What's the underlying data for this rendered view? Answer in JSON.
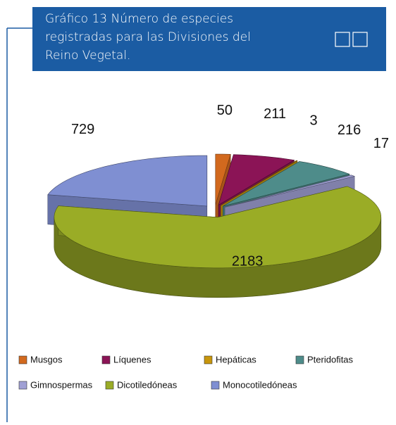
{
  "chart_data": {
    "type": "pie3d",
    "title": [
      "Gráfico 13 Número de especies",
      "registradas para las Divisiones del",
      "Reino Vegetal."
    ],
    "categories": [
      "Musgos",
      "Líquenes",
      "Hepáticas",
      "Pteridofitas",
      "Gimnospermas",
      "Dicotiledóneas",
      "Monocotiledóneas"
    ],
    "values": [
      50,
      211,
      3,
      216,
      17,
      2183,
      729
    ],
    "colors": [
      "#d2691e",
      "#8b1456",
      "#c8960c",
      "#4e8c8a",
      "#a0a0d4",
      "#9aac26",
      "#7f8fd2"
    ]
  }
}
